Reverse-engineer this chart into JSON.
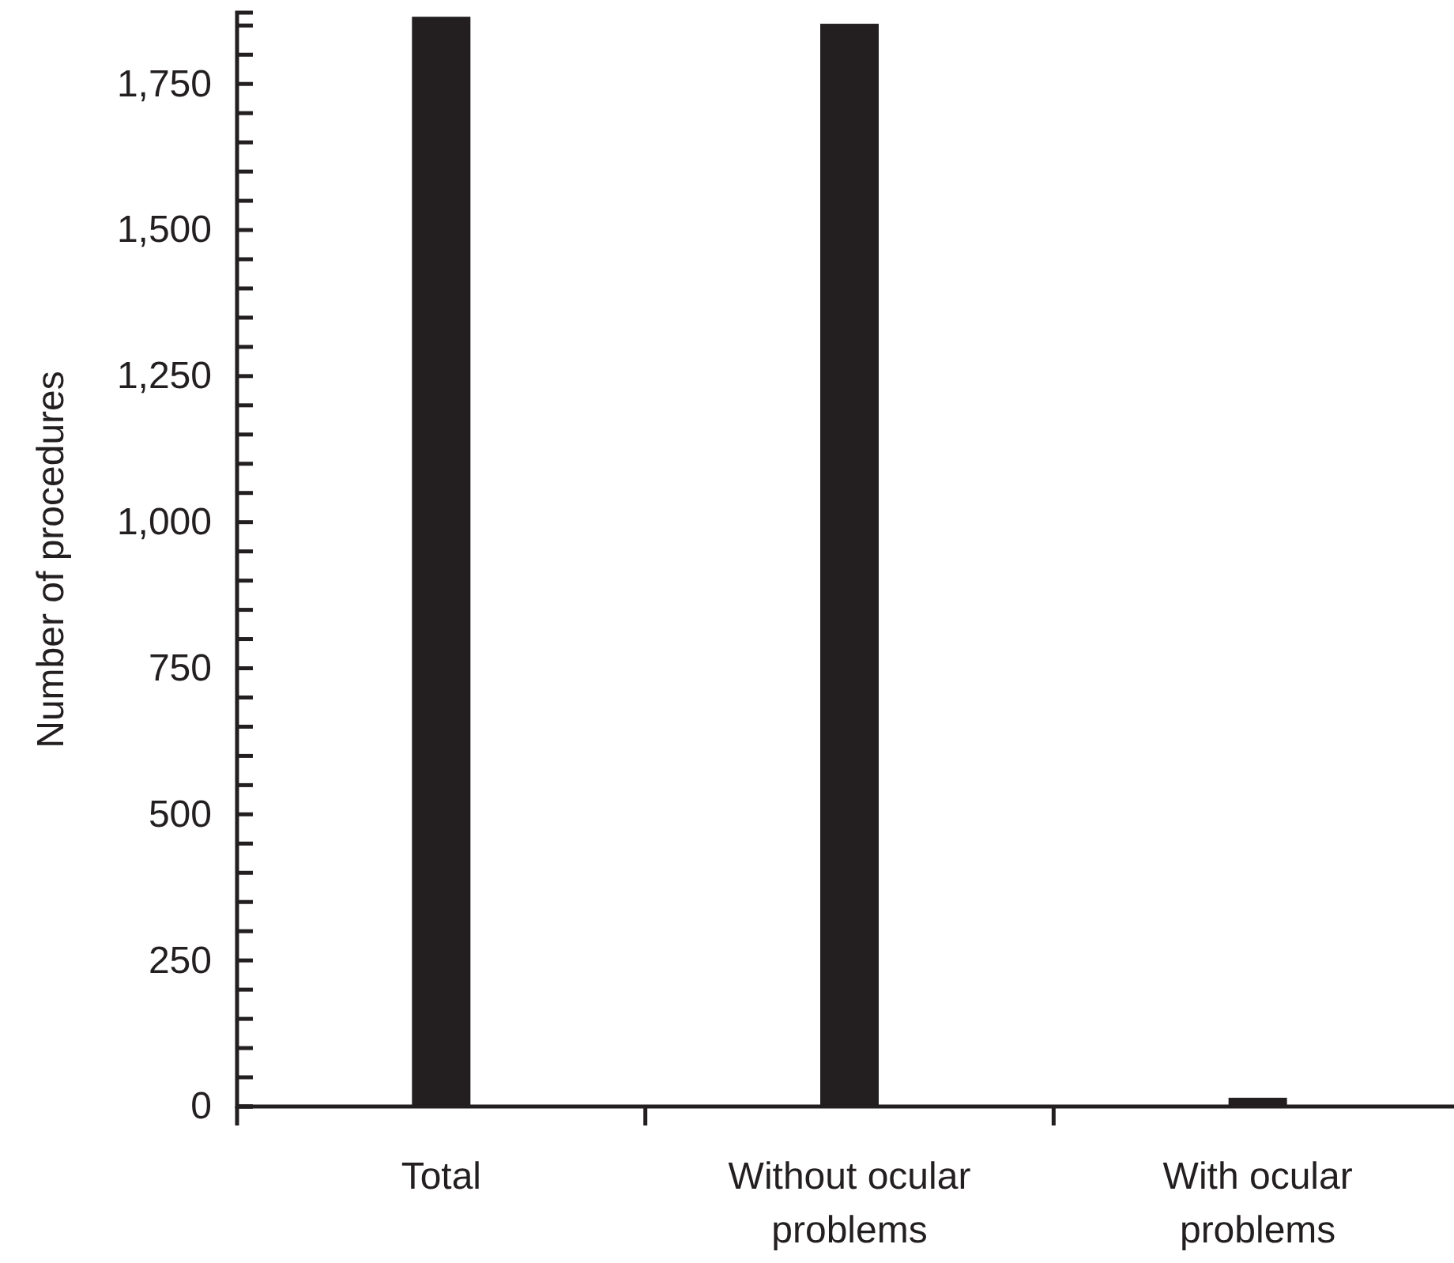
{
  "chart_data": {
    "type": "bar",
    "ylabel": "Number of procedures",
    "categories": [
      "Total",
      "Without ocular\nproblems",
      "With ocular\nproblems"
    ],
    "values": [
      1865,
      1853,
      15
    ],
    "color": "#231f20",
    "ylim": [
      0,
      1872
    ],
    "yticks": [
      0,
      {
        "value": 50,
        "label": null
      },
      {
        "value": 100,
        "label": null
      },
      {
        "value": 150,
        "label": null
      },
      {
        "value": 200,
        "label": null
      },
      {
        "value": 250,
        "label": "250"
      },
      {
        "value": 300,
        "label": null
      },
      {
        "value": 350,
        "label": null
      },
      {
        "value": 400,
        "label": null
      },
      {
        "value": 450,
        "label": null
      },
      {
        "value": 500,
        "label": "500"
      },
      {
        "value": 550,
        "label": null
      },
      {
        "value": 600,
        "label": null
      },
      {
        "value": 650,
        "label": null
      },
      {
        "value": 700,
        "label": null
      },
      {
        "value": 750,
        "label": "750"
      },
      {
        "value": 800,
        "label": null
      },
      {
        "value": 850,
        "label": null
      },
      {
        "value": 900,
        "label": null
      },
      {
        "value": 950,
        "label": null
      },
      {
        "value": 1000,
        "label": "1,000"
      },
      {
        "value": 1050,
        "label": null
      },
      {
        "value": 1100,
        "label": null
      },
      {
        "value": 1150,
        "label": null
      },
      {
        "value": 1200,
        "label": null
      },
      {
        "value": 1250,
        "label": "1,250"
      },
      {
        "value": 1300,
        "label": null
      },
      {
        "value": 1350,
        "label": null
      },
      {
        "value": 1400,
        "label": null
      },
      {
        "value": 1450,
        "label": null
      },
      {
        "value": 1500,
        "label": "1,500"
      },
      {
        "value": 1550,
        "label": null
      },
      {
        "value": 1600,
        "label": null
      },
      {
        "value": 1650,
        "label": null
      },
      {
        "value": 1700,
        "label": null
      },
      {
        "value": 1750,
        "label": "1,750"
      },
      {
        "value": 1800,
        "label": null
      },
      {
        "value": 1850,
        "label": null
      }
    ],
    "grid": false
  }
}
